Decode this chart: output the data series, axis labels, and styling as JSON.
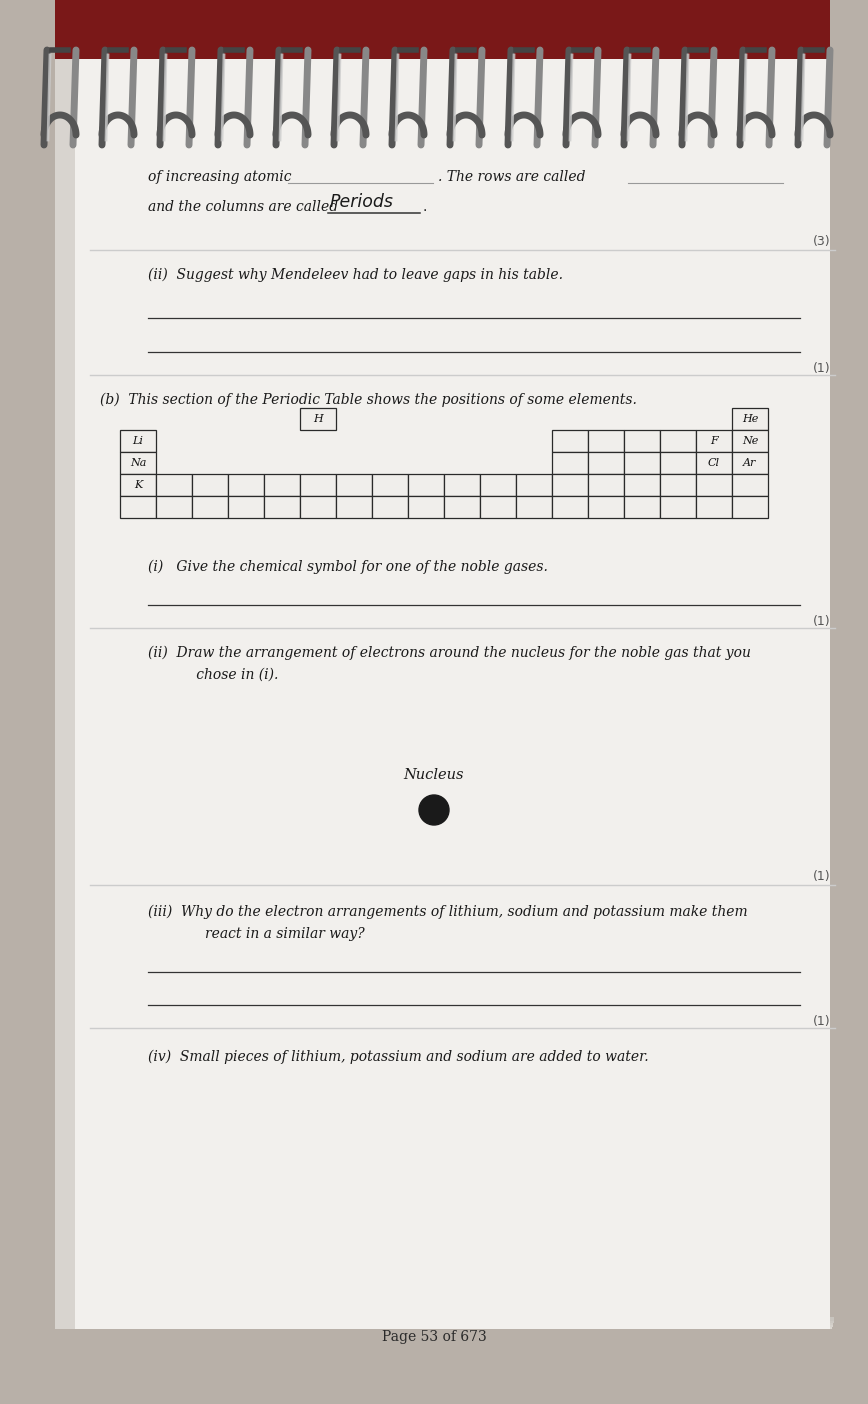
{
  "bg_color": "#b8b0a8",
  "page_bg": "#f2f0ed",
  "red_band": "#7a1818",
  "dark_text": "#1a1a1a",
  "gray_text": "#555555",
  "line_color": "#444444",
  "sep_color": "#cccccc",
  "cell_color": "#f0eeeb",
  "spiral_dark": "#666666",
  "spiral_light": "#aaaaaa",
  "fs_body": 10,
  "fs_small": 8.5,
  "fs_mark": 9,
  "lm": 148,
  "page_title": "Page 53 of 673",
  "text_line1a": "of increasing atomic",
  "text_line1b": ". The rows are called",
  "text_line2": "and the columns are called",
  "text_handwritten": "Periods",
  "text_ii": "(ii)  Suggest why Mendeleev had to leave gaps in his table.",
  "text_b": "(b)  This section of the Periodic Table shows the positions of some elements.",
  "text_bi": "(i)   Give the chemical symbol for one of the noble gases.",
  "text_bii_1": "(ii)  Draw the arrangement of electrons around the nucleus for the noble gas that you",
  "text_bii_2": "      chose in (i).",
  "text_biii_1": "(iii)  Why do the electron arrangements of lithium, sodium and potassium make them",
  "text_biii_2": "        react in a similar way?",
  "text_biv": "(iv)  Small pieces of lithium, potassium and sodium are added to water.",
  "mark3": "(3)",
  "mark1": "(1)",
  "nucleus_label": "Nucleus"
}
